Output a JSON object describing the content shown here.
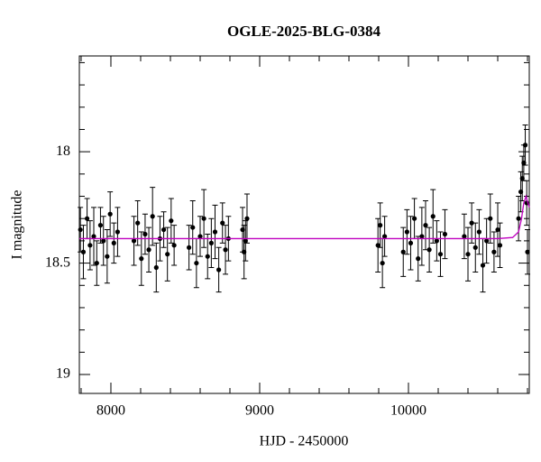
{
  "chart_data": {
    "type": "scatter",
    "title": "OGLE-2025-BLG-0384",
    "x_label": "HJD - 2450000",
    "y_label": "I magnitude",
    "xlim": [
      7788,
      10812
    ],
    "ylim": [
      19.085,
      17.57
    ],
    "xticks": [
      8000,
      9000,
      10000
    ],
    "yticks": [
      18,
      18.5,
      19
    ],
    "x_minor_ticks": [
      7800,
      8200,
      8400,
      8600,
      8800,
      9200,
      9400,
      9600,
      9800,
      10200,
      10400,
      10600,
      10800
    ],
    "y_minor_ticks": [
      17.6,
      17.7,
      17.8,
      17.9,
      18.1,
      18.2,
      18.3,
      18.4,
      18.6,
      18.7,
      18.8,
      18.9,
      19.0
    ],
    "color": "#000000",
    "x": [
      7795,
      7815,
      7840,
      7860,
      7885,
      7905,
      7930,
      7950,
      7975,
      7995,
      8020,
      8045,
      8155,
      8180,
      8205,
      8230,
      8255,
      8280,
      8305,
      8330,
      8355,
      8380,
      8405,
      8425,
      8525,
      8550,
      8575,
      8600,
      8625,
      8650,
      8675,
      8700,
      8725,
      8750,
      8770,
      8790,
      8885,
      8895,
      8905,
      8915,
      9795,
      9810,
      9825,
      9840,
      9965,
      9990,
      10015,
      10040,
      10065,
      10090,
      10115,
      10140,
      10165,
      10190,
      10215,
      10245,
      10375,
      10400,
      10425,
      10450,
      10475,
      10500,
      10525,
      10550,
      10575,
      10600,
      10615,
      10740,
      10755,
      10765,
      10775,
      10785,
      10795,
      10800
    ],
    "values": [
      18.35,
      18.45,
      18.3,
      18.42,
      18.38,
      18.5,
      18.33,
      18.4,
      18.47,
      18.28,
      18.41,
      18.36,
      18.4,
      18.32,
      18.48,
      18.37,
      18.44,
      18.29,
      18.52,
      18.39,
      18.35,
      18.46,
      18.31,
      18.42,
      18.43,
      18.34,
      18.5,
      18.38,
      18.3,
      18.47,
      18.41,
      18.36,
      18.53,
      18.32,
      18.44,
      18.39,
      18.35,
      18.45,
      18.4,
      18.3,
      18.42,
      18.33,
      18.5,
      18.38,
      18.45,
      18.36,
      18.41,
      18.3,
      18.48,
      18.38,
      18.33,
      18.44,
      18.29,
      18.4,
      18.46,
      18.37,
      18.38,
      18.46,
      18.32,
      18.43,
      18.36,
      18.51,
      18.4,
      18.3,
      18.45,
      18.35,
      18.42,
      18.3,
      18.18,
      18.12,
      18.05,
      17.97,
      18.23,
      18.45
    ],
    "errors": [
      0.1,
      0.12,
      0.09,
      0.11,
      0.13,
      0.1,
      0.08,
      0.11,
      0.12,
      0.1,
      0.09,
      0.11,
      0.11,
      0.1,
      0.12,
      0.09,
      0.1,
      0.13,
      0.11,
      0.1,
      0.08,
      0.12,
      0.1,
      0.09,
      0.1,
      0.12,
      0.11,
      0.09,
      0.13,
      0.1,
      0.11,
      0.12,
      0.1,
      0.09,
      0.11,
      0.1,
      0.1,
      0.12,
      0.09,
      0.11,
      0.12,
      0.1,
      0.11,
      0.09,
      0.11,
      0.1,
      0.12,
      0.09,
      0.1,
      0.13,
      0.11,
      0.1,
      0.12,
      0.09,
      0.1,
      0.11,
      0.1,
      0.12,
      0.09,
      0.11,
      0.1,
      0.12,
      0.1,
      0.11,
      0.09,
      0.12,
      0.1,
      0.1,
      0.09,
      0.1,
      0.08,
      0.09,
      0.1,
      0.1
    ],
    "model": {
      "color": "#c000c0",
      "x": [
        7788,
        10600,
        10700,
        10740,
        10760,
        10775,
        10790,
        10812
      ],
      "values": [
        18.39,
        18.39,
        18.385,
        18.36,
        18.3,
        18.23,
        18.2,
        18.25
      ]
    }
  }
}
